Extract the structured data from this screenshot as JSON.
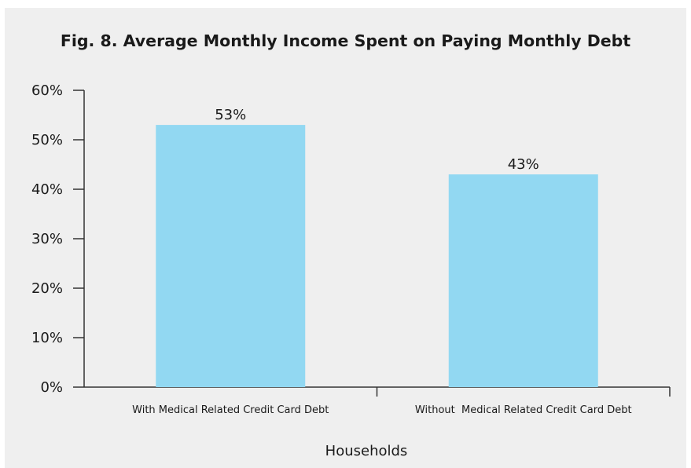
{
  "chart_data": {
    "type": "bar",
    "title": "Fig. 8. Average Monthly Income Spent on Paying Monthly Debt",
    "xlabel": "Households",
    "ylabel": "",
    "categories": [
      "With Medical Related Credit Card Debt",
      "Without  Medical Related Credit Card Debt"
    ],
    "values": [
      53,
      43
    ],
    "data_labels": [
      "53%",
      "43%"
    ],
    "ylim": [
      0,
      60
    ],
    "yticks": [
      0,
      10,
      20,
      30,
      40,
      50,
      60
    ],
    "ytick_labels": [
      "0%",
      "10%",
      "20%",
      "30%",
      "40%",
      "50%",
      "60%"
    ],
    "bar_color": "#92d8f2",
    "background_color": "#efefef",
    "grid": false
  }
}
